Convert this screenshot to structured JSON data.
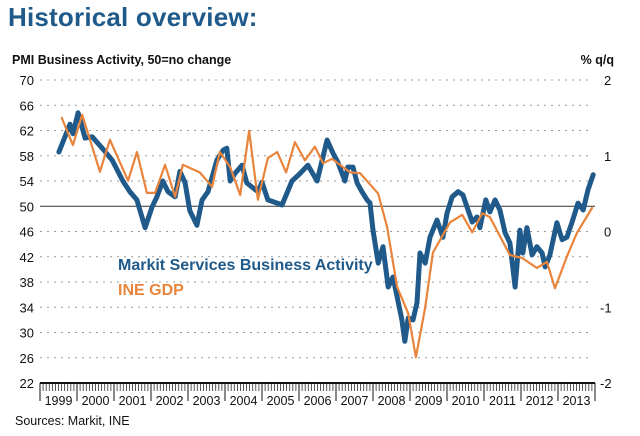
{
  "page": {
    "title": "Historical overview:",
    "source": "Sources: Markit, INE"
  },
  "colors": {
    "title": "#1f5a8a",
    "pmi_series": "#1f5a8a",
    "gdp_series": "#e8843c",
    "grid": "#9a9a9a",
    "axis": "#111111"
  },
  "chart_data": {
    "type": "line",
    "title": "Historical overview:",
    "ylabel": "PMI Business Activity, 50=no change",
    "ylabel_right": "% q/q",
    "xlabel": "",
    "x_categories": [
      "1999",
      "2000",
      "2001",
      "2002",
      "2003",
      "2004",
      "2005",
      "2006",
      "2007",
      "2008",
      "2009",
      "2010",
      "2011",
      "2012",
      "2013"
    ],
    "xlim": [
      1999,
      2014
    ],
    "ylim": [
      22,
      70
    ],
    "yticks": [
      70,
      66,
      62,
      58,
      54,
      50,
      46,
      42,
      38,
      34,
      30,
      26,
      22
    ],
    "ylim_right": [
      -2,
      2
    ],
    "yticks_right": [
      2,
      1,
      0,
      -1,
      -2
    ],
    "reference_line": 50,
    "grid": true,
    "legend": "inside-center-left",
    "series": [
      {
        "name": "Markit Services Business Activity",
        "axis": "left",
        "color": "#1f5a8a",
        "x": [
          1999.51,
          1999.81,
          1999.89,
          2000.03,
          2000.22,
          2000.41,
          2000.68,
          2000.95,
          2001.24,
          2001.43,
          2001.62,
          2001.84,
          2002.03,
          2002.16,
          2002.32,
          2002.46,
          2002.65,
          2002.78,
          2002.92,
          2003.05,
          2003.24,
          2003.38,
          2003.54,
          2003.78,
          2003.95,
          2004.05,
          2004.14,
          2004.27,
          2004.46,
          2004.59,
          2004.89,
          2005.0,
          2005.16,
          2005.41,
          2005.54,
          2005.81,
          2006.03,
          2006.24,
          2006.49,
          2006.76,
          2006.92,
          2007.05,
          2007.24,
          2007.32,
          2007.46,
          2007.57,
          2007.7,
          2007.84,
          2007.92,
          2008.0,
          2008.14,
          2008.27,
          2008.41,
          2008.54,
          2008.78,
          2008.86,
          2008.95,
          2009.08,
          2009.19,
          2009.27,
          2009.41,
          2009.54,
          2009.73,
          2009.89,
          2010.0,
          2010.14,
          2010.3,
          2010.43,
          2010.54,
          2010.68,
          2010.81,
          2010.89,
          2011.05,
          2011.16,
          2011.3,
          2011.43,
          2011.57,
          2011.7,
          2011.84,
          2011.97,
          2012.05,
          2012.16,
          2012.3,
          2012.43,
          2012.57,
          2012.65,
          2012.78,
          2012.97,
          2013.11,
          2013.24,
          2013.38,
          2013.54,
          2013.68,
          2013.81,
          2013.95
        ],
        "values": [
          58.6,
          63,
          61.5,
          64.8,
          60.8,
          61,
          59.2,
          57.3,
          54,
          52.3,
          51,
          46.6,
          49.9,
          51.5,
          54,
          52.3,
          51.5,
          55.5,
          53.8,
          49.3,
          47,
          51,
          52.3,
          57.3,
          58.9,
          59.2,
          54,
          55.2,
          56.5,
          53.7,
          52.3,
          53.8,
          51,
          50.5,
          50.2,
          54,
          55.2,
          56.5,
          54,
          60.5,
          58.4,
          57,
          54,
          56.2,
          56.2,
          53.7,
          52.3,
          51,
          50.5,
          46.2,
          41,
          43.6,
          37.2,
          38.8,
          32,
          28.6,
          32.3,
          32,
          34.7,
          42.6,
          41,
          45.1,
          47.8,
          45.1,
          48.9,
          51.5,
          52.3,
          51.8,
          49.9,
          47.5,
          48.3,
          46.6,
          51,
          49.1,
          51,
          49.4,
          45.8,
          44.2,
          37.2,
          46.2,
          42.6,
          46.6,
          42.3,
          43.6,
          42.6,
          40.4,
          42.3,
          47.4,
          44.7,
          45.1,
          47.5,
          50.5,
          49.4,
          52.6,
          55
        ]
      },
      {
        "name": "INE GDP",
        "axis": "right",
        "color": "#e8843c",
        "x": [
          1999.59,
          1999.89,
          2000.14,
          2000.62,
          2000.89,
          2001.38,
          2001.62,
          2001.89,
          2002.11,
          2002.38,
          2002.65,
          2002.86,
          2003.32,
          2003.65,
          2003.86,
          2004.14,
          2004.41,
          2004.65,
          2004.89,
          2005.16,
          2005.41,
          2005.65,
          2005.89,
          2006.16,
          2006.43,
          2006.65,
          2006.89,
          2007.38,
          2007.65,
          2008.14,
          2008.38,
          2008.65,
          2008.95,
          2009.16,
          2009.41,
          2009.62,
          2010.08,
          2010.41,
          2010.68,
          2010.95,
          2011.16,
          2011.7,
          2012.03,
          2012.43,
          2012.7,
          2012.92,
          2013.24,
          2013.51,
          2013.92
        ],
        "values": [
          1.5,
          1.14,
          1.54,
          0.79,
          1.21,
          0.67,
          1.05,
          0.51,
          0.51,
          0.88,
          0.46,
          0.88,
          0.78,
          0.59,
          1.05,
          0.85,
          0.48,
          1.33,
          0.42,
          0.97,
          1.05,
          0.78,
          1.18,
          0.94,
          1.12,
          0.9,
          0.96,
          0.78,
          0.77,
          0.5,
          0.06,
          -0.73,
          -1.08,
          -1.66,
          -1.0,
          -0.28,
          0.12,
          0.22,
          -0.01,
          0.24,
          0.19,
          -0.31,
          -0.35,
          -0.48,
          -0.4,
          -0.75,
          -0.33,
          -0.02,
          0.31
        ]
      }
    ]
  }
}
